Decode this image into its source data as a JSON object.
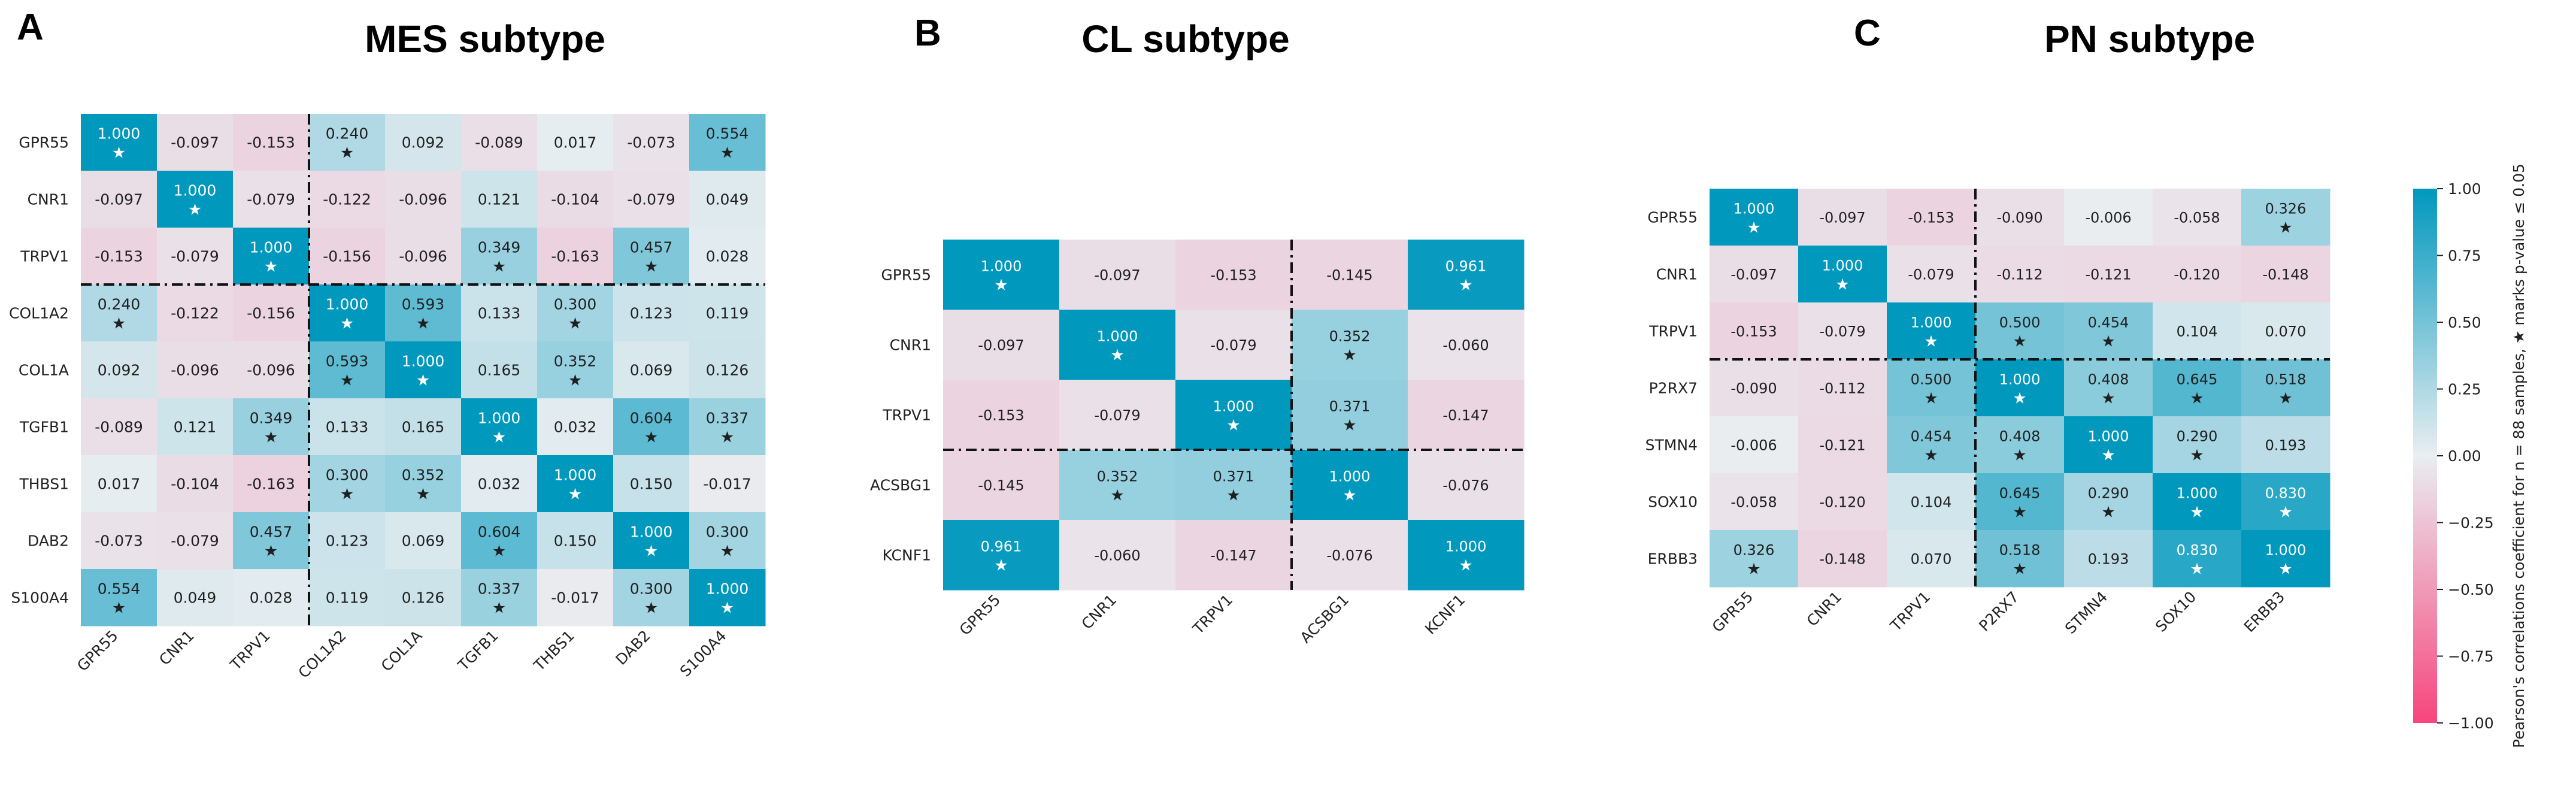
{
  "chart_data": [
    {
      "type": "heatmap",
      "panel": "A",
      "title": "MES subtype",
      "labels": [
        "GPR55",
        "CNR1",
        "TRPV1",
        "COL1A2",
        "COL1A",
        "TGFB1",
        "THBS1",
        "DAB2",
        "S100A4"
      ],
      "values": [
        [
          1.0,
          -0.097,
          -0.153,
          0.24,
          0.092,
          -0.089,
          0.017,
          -0.073,
          0.554
        ],
        [
          -0.097,
          1.0,
          -0.079,
          -0.122,
          -0.096,
          0.121,
          -0.104,
          -0.079,
          0.049
        ],
        [
          -0.153,
          -0.079,
          1.0,
          -0.156,
          -0.096,
          0.349,
          -0.163,
          0.457,
          0.028
        ],
        [
          0.24,
          -0.122,
          -0.156,
          1.0,
          0.593,
          0.133,
          0.3,
          0.123,
          0.119
        ],
        [
          0.092,
          -0.096,
          -0.096,
          0.593,
          1.0,
          0.165,
          0.352,
          0.069,
          0.126
        ],
        [
          -0.089,
          0.121,
          0.349,
          0.133,
          0.165,
          1.0,
          0.032,
          0.604,
          0.337
        ],
        [
          0.017,
          -0.104,
          -0.163,
          0.3,
          0.352,
          0.032,
          1.0,
          0.15,
          -0.017
        ],
        [
          -0.073,
          -0.079,
          0.457,
          0.123,
          0.069,
          0.604,
          0.15,
          1.0,
          0.3
        ],
        [
          0.554,
          0.049,
          0.028,
          0.119,
          0.126,
          0.337,
          -0.017,
          0.3,
          1.0
        ]
      ],
      "significant": [
        [
          1,
          0,
          0,
          1,
          0,
          0,
          0,
          0,
          1
        ],
        [
          0,
          1,
          0,
          0,
          0,
          0,
          0,
          0,
          0
        ],
        [
          0,
          0,
          1,
          0,
          0,
          1,
          0,
          1,
          0
        ],
        [
          1,
          0,
          0,
          1,
          1,
          0,
          1,
          0,
          0
        ],
        [
          0,
          0,
          0,
          1,
          1,
          0,
          1,
          0,
          0
        ],
        [
          0,
          0,
          1,
          0,
          0,
          1,
          0,
          1,
          1
        ],
        [
          0,
          0,
          0,
          1,
          1,
          0,
          1,
          0,
          0
        ],
        [
          0,
          0,
          1,
          0,
          0,
          1,
          0,
          1,
          1
        ],
        [
          1,
          0,
          0,
          0,
          0,
          1,
          0,
          1,
          1
        ]
      ],
      "divider_after": 3
    },
    {
      "type": "heatmap",
      "panel": "B",
      "title": "CL subtype",
      "labels": [
        "GPR55",
        "CNR1",
        "TRPV1",
        "ACSBG1",
        "KCNF1"
      ],
      "values": [
        [
          1.0,
          -0.097,
          -0.153,
          -0.145,
          0.961
        ],
        [
          -0.097,
          1.0,
          -0.079,
          0.352,
          -0.06
        ],
        [
          -0.153,
          -0.079,
          1.0,
          0.371,
          -0.147
        ],
        [
          -0.145,
          0.352,
          0.371,
          1.0,
          -0.076
        ],
        [
          0.961,
          -0.06,
          -0.147,
          -0.076,
          1.0
        ]
      ],
      "significant": [
        [
          1,
          0,
          0,
          0,
          1
        ],
        [
          0,
          1,
          0,
          1,
          0
        ],
        [
          0,
          0,
          1,
          1,
          0
        ],
        [
          0,
          1,
          1,
          1,
          0
        ],
        [
          1,
          0,
          0,
          0,
          1
        ]
      ],
      "divider_after": 3
    },
    {
      "type": "heatmap",
      "panel": "C",
      "title": "PN subtype",
      "labels": [
        "GPR55",
        "CNR1",
        "TRPV1",
        "P2RX7",
        "STMN4",
        "SOX10",
        "ERBB3"
      ],
      "values": [
        [
          1.0,
          -0.097,
          -0.153,
          -0.09,
          -0.006,
          -0.058,
          0.326
        ],
        [
          -0.097,
          1.0,
          -0.079,
          -0.112,
          -0.121,
          -0.12,
          -0.148
        ],
        [
          -0.153,
          -0.079,
          1.0,
          0.5,
          0.454,
          0.104,
          0.07
        ],
        [
          -0.09,
          -0.112,
          0.5,
          1.0,
          0.408,
          0.645,
          0.518
        ],
        [
          -0.006,
          -0.121,
          0.454,
          0.408,
          1.0,
          0.29,
          0.193
        ],
        [
          -0.058,
          -0.12,
          0.104,
          0.645,
          0.29,
          1.0,
          0.83
        ],
        [
          0.326,
          -0.148,
          0.07,
          0.518,
          0.193,
          0.83,
          1.0
        ]
      ],
      "significant": [
        [
          1,
          0,
          0,
          0,
          0,
          0,
          1
        ],
        [
          0,
          1,
          0,
          0,
          0,
          0,
          0
        ],
        [
          0,
          0,
          1,
          1,
          1,
          0,
          0
        ],
        [
          0,
          0,
          1,
          1,
          1,
          1,
          1
        ],
        [
          0,
          0,
          1,
          1,
          1,
          1,
          0
        ],
        [
          0,
          0,
          0,
          1,
          1,
          1,
          1
        ],
        [
          1,
          0,
          0,
          1,
          0,
          1,
          1
        ]
      ],
      "divider_after": 3
    }
  ],
  "colorbar": {
    "label": "Pearson's correlations coefficient for n = 88 samples, ★ marks p-value  ≤ 0.05",
    "ticks": [
      "1.00",
      "0.75",
      "0.50",
      "0.25",
      "0.00",
      "−0.25",
      "−0.50",
      "−0.75",
      "−1.00"
    ],
    "range": [
      -1,
      1
    ]
  },
  "colors": {
    "positive": "#0098bd",
    "neutral": "#e9eef1",
    "negative": "#f7457d"
  },
  "star_glyph": "★"
}
